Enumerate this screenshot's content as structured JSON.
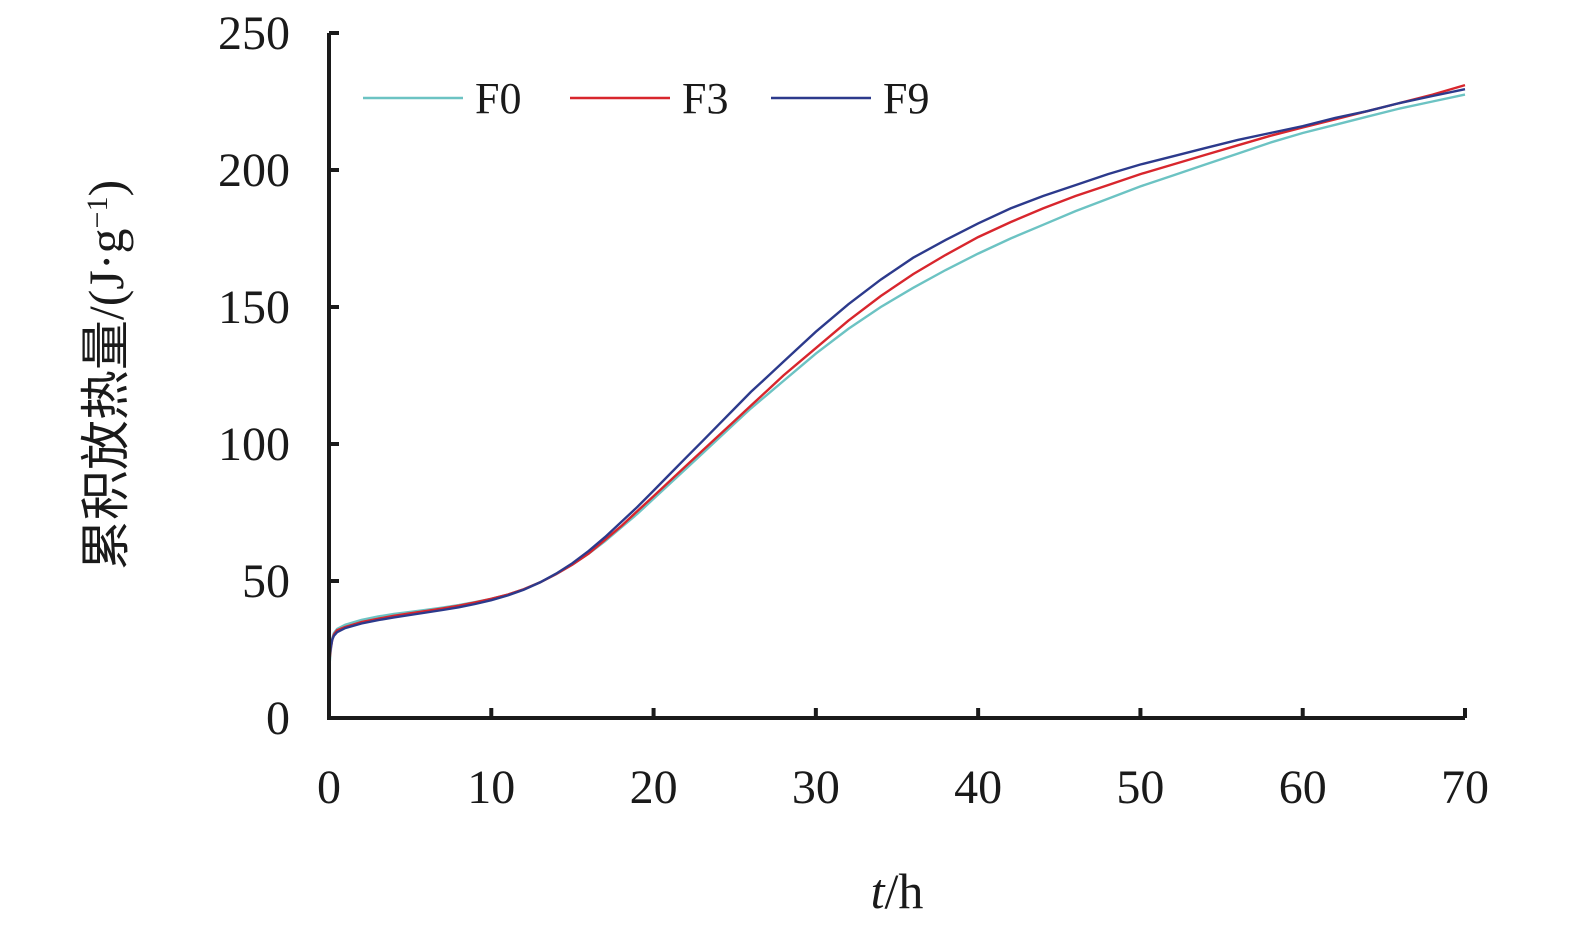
{
  "chart_data": {
    "type": "line",
    "title": "",
    "xlabel_var": "t",
    "xlabel_unit": "/h",
    "ylabel_main": "累积放热量/(J·g",
    "ylabel_sup": "−1",
    "ylabel_close": ")",
    "xlim": [
      0,
      70
    ],
    "ylim": [
      0,
      250
    ],
    "xticks": [
      0,
      10,
      20,
      30,
      40,
      50,
      60,
      70
    ],
    "yticks": [
      0,
      50,
      100,
      150,
      200,
      250
    ],
    "grid": false,
    "legend_position": "top-left",
    "series": [
      {
        "name": "F0",
        "color": "#6cc3c3",
        "x": [
          0,
          0.1,
          0.2,
          0.3,
          0.5,
          1,
          2,
          3,
          4,
          5,
          6,
          7,
          8,
          9,
          10,
          11,
          12,
          13,
          14,
          15,
          16,
          17,
          18,
          19,
          20,
          21,
          22,
          23,
          24,
          25,
          26,
          27,
          28,
          29,
          30,
          32,
          34,
          36,
          38,
          40,
          42,
          44,
          46,
          48,
          50,
          52,
          54,
          56,
          58,
          60,
          62,
          64,
          66,
          68,
          70
        ],
        "y": [
          17,
          24,
          29,
          31,
          32.5,
          34,
          35.8,
          37,
          38,
          38.7,
          39.5,
          40.3,
          41.2,
          42.3,
          43.5,
          45,
          47,
          49.5,
          52.5,
          56,
          60,
          64.5,
          69.5,
          74.5,
          80,
          85.5,
          91,
          96.5,
          102,
          107.5,
          113,
          118,
          123,
          128,
          133,
          142,
          150,
          157,
          163.5,
          169.5,
          175,
          180,
          185,
          189.5,
          194,
          198,
          202,
          206,
          210,
          213.5,
          216.5,
          219.5,
          222.5,
          225,
          227.5
        ]
      },
      {
        "name": "F3",
        "color": "#d8262d",
        "x": [
          0,
          0.1,
          0.2,
          0.3,
          0.5,
          1,
          2,
          3,
          4,
          5,
          6,
          7,
          8,
          9,
          10,
          11,
          12,
          13,
          14,
          15,
          16,
          17,
          18,
          19,
          20,
          21,
          22,
          23,
          24,
          25,
          26,
          27,
          28,
          29,
          30,
          32,
          34,
          36,
          38,
          40,
          42,
          44,
          46,
          48,
          50,
          52,
          54,
          56,
          58,
          60,
          62,
          64,
          66,
          68,
          70
        ],
        "y": [
          19,
          25,
          28.5,
          30.5,
          32,
          33.2,
          35,
          36.2,
          37.3,
          38.2,
          39.1,
          40,
          41,
          42.2,
          43.5,
          45,
          47,
          49.5,
          52.5,
          56,
          60,
          65,
          70,
          75.5,
          81,
          86.5,
          92,
          97.5,
          103,
          108.5,
          114,
          119.5,
          125,
          130,
          135,
          145,
          154,
          162,
          169,
          175.5,
          181,
          186,
          190.5,
          194.5,
          198.5,
          202,
          205.5,
          209,
          212.5,
          215.5,
          218.5,
          221.5,
          224.5,
          227.5,
          231
        ]
      },
      {
        "name": "F9",
        "color": "#2c3a8c",
        "x": [
          0,
          0.1,
          0.2,
          0.3,
          0.5,
          1,
          2,
          3,
          4,
          5,
          6,
          7,
          8,
          9,
          10,
          11,
          12,
          13,
          14,
          15,
          16,
          17,
          18,
          19,
          20,
          21,
          22,
          23,
          24,
          25,
          26,
          27,
          28,
          29,
          30,
          32,
          34,
          36,
          38,
          40,
          42,
          44,
          46,
          48,
          50,
          52,
          54,
          56,
          58,
          60,
          62,
          64,
          66,
          68,
          70
        ],
        "y": [
          21,
          25.5,
          28.5,
          30,
          31.3,
          32.8,
          34.5,
          35.7,
          36.7,
          37.6,
          38.5,
          39.4,
          40.4,
          41.6,
          43,
          44.7,
          46.8,
          49.5,
          52.7,
          56.5,
          61,
          66,
          71.5,
          77,
          83,
          89,
          95,
          101,
          107,
          113,
          119,
          124.5,
          130,
          135.5,
          141,
          151,
          160,
          168,
          174.5,
          180.5,
          186,
          190.5,
          194.5,
          198.5,
          202,
          205,
          208,
          211,
          213.5,
          216,
          219,
          221.5,
          224.5,
          227,
          229.5
        ]
      }
    ]
  }
}
